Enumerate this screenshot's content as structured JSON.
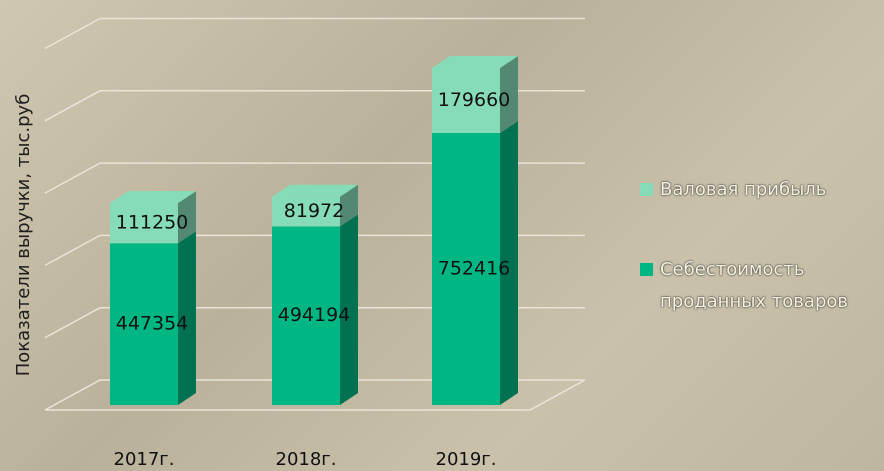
{
  "chart_data": {
    "type": "bar3d_stacked",
    "y_label": "Показатели выручки, тыс.руб",
    "categories": [
      "2017г.",
      "2018г.",
      "2019г."
    ],
    "series": [
      {
        "name": "Себестоимость проданных товаров",
        "color": "#00b783",
        "values": [
          447354,
          494194,
          752416
        ]
      },
      {
        "name": "Валовая прибыль",
        "color": "#86dcb8",
        "values": [
          111250,
          81972,
          179660
        ]
      }
    ],
    "ylim": [
      0,
      1000000
    ],
    "yticks": [
      0,
      200000,
      400000,
      600000,
      800000,
      1000000
    ],
    "grid": true
  }
}
